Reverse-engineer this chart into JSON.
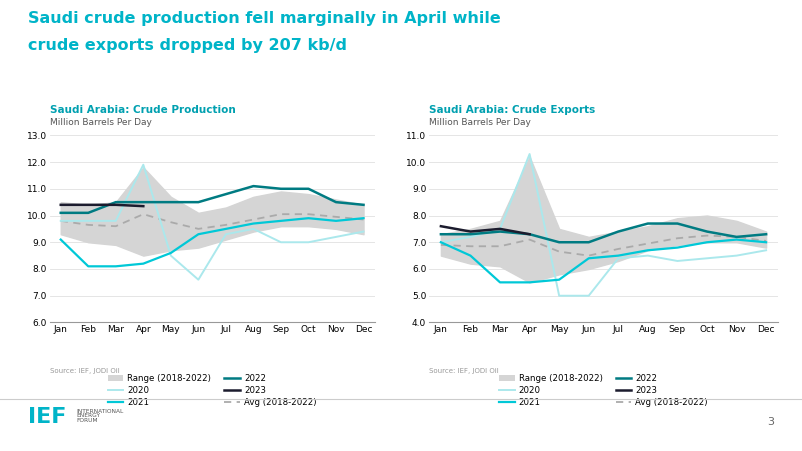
{
  "title_line1": "Saudi crude production fell marginally in April while",
  "title_line2": "crude exports dropped by 207 kb/d",
  "title_color": "#00b4c8",
  "background_color": "#ffffff",
  "chart1": {
    "title": "Saudi Arabia: Crude Production",
    "subtitle": "Million Barrels Per Day",
    "ylim": [
      6.0,
      13.0
    ],
    "yticks": [
      6.0,
      7.0,
      8.0,
      9.0,
      10.0,
      11.0,
      12.0,
      13.0
    ],
    "months": [
      "Jan",
      "Feb",
      "Mar",
      "Apr",
      "May",
      "Jun",
      "Jul",
      "Aug",
      "Sep",
      "Oct",
      "Nov",
      "Dec"
    ],
    "range_low": [
      9.3,
      9.0,
      8.9,
      8.5,
      8.7,
      8.8,
      9.1,
      9.4,
      9.6,
      9.6,
      9.5,
      9.3
    ],
    "range_high": [
      10.5,
      10.4,
      10.5,
      11.8,
      10.7,
      10.1,
      10.3,
      10.7,
      10.9,
      10.8,
      10.6,
      10.4
    ],
    "y2020": [
      9.8,
      9.8,
      9.8,
      11.9,
      8.5,
      7.6,
      9.3,
      9.5,
      9.0,
      9.0,
      9.2,
      9.4
    ],
    "y2021": [
      9.1,
      8.1,
      8.1,
      8.2,
      8.6,
      9.3,
      9.5,
      9.7,
      9.8,
      9.9,
      9.8,
      9.9
    ],
    "y2022": [
      10.1,
      10.1,
      10.5,
      10.5,
      10.5,
      10.5,
      10.8,
      11.1,
      11.0,
      11.0,
      10.5,
      10.4
    ],
    "y2023": [
      10.4,
      10.4,
      10.4,
      10.35,
      null,
      null,
      null,
      null,
      null,
      null,
      null,
      null
    ],
    "avg": [
      9.8,
      9.65,
      9.6,
      10.05,
      9.75,
      9.5,
      9.65,
      9.85,
      10.05,
      10.05,
      9.95,
      9.85
    ]
  },
  "chart2": {
    "title": "Saudi Arabia: Crude Exports",
    "subtitle": "Million Barrels Per Day",
    "ylim": [
      4.0,
      11.0
    ],
    "yticks": [
      4.0,
      5.0,
      6.0,
      7.0,
      8.0,
      9.0,
      10.0,
      11.0
    ],
    "months": [
      "Jan",
      "Feb",
      "Mar",
      "Apr",
      "May",
      "Jun",
      "Jul",
      "Aug",
      "Sep",
      "Oct",
      "Nov",
      "Dec"
    ],
    "range_low": [
      6.5,
      6.2,
      6.1,
      5.5,
      5.8,
      6.0,
      6.3,
      6.7,
      6.9,
      7.0,
      7.0,
      6.8
    ],
    "range_high": [
      7.3,
      7.5,
      7.8,
      10.2,
      7.5,
      7.2,
      7.4,
      7.6,
      7.9,
      8.0,
      7.8,
      7.4
    ],
    "y2020": [
      7.0,
      7.2,
      7.5,
      10.3,
      5.0,
      5.0,
      6.4,
      6.5,
      6.3,
      6.4,
      6.5,
      6.7
    ],
    "y2021": [
      7.0,
      6.5,
      5.5,
      5.5,
      5.6,
      6.4,
      6.5,
      6.7,
      6.8,
      7.0,
      7.1,
      7.0
    ],
    "y2022": [
      7.3,
      7.3,
      7.4,
      7.3,
      7.0,
      7.0,
      7.4,
      7.7,
      7.7,
      7.4,
      7.2,
      7.3
    ],
    "y2023": [
      7.6,
      7.4,
      7.5,
      7.3,
      null,
      null,
      null,
      null,
      null,
      null,
      null,
      null
    ],
    "avg": [
      6.9,
      6.85,
      6.85,
      7.1,
      6.65,
      6.5,
      6.75,
      6.95,
      7.15,
      7.25,
      7.2,
      7.05
    ]
  },
  "color_2020": "#abe8ec",
  "color_2021": "#00c8d7",
  "color_2022": "#007b82",
  "color_2023": "#1c1c2e",
  "color_avg": "#aaaaaa",
  "color_range": "#d5d5d5",
  "color_title_chart": "#00a0b0",
  "source_text": "Source: IEF, JODI Oil"
}
